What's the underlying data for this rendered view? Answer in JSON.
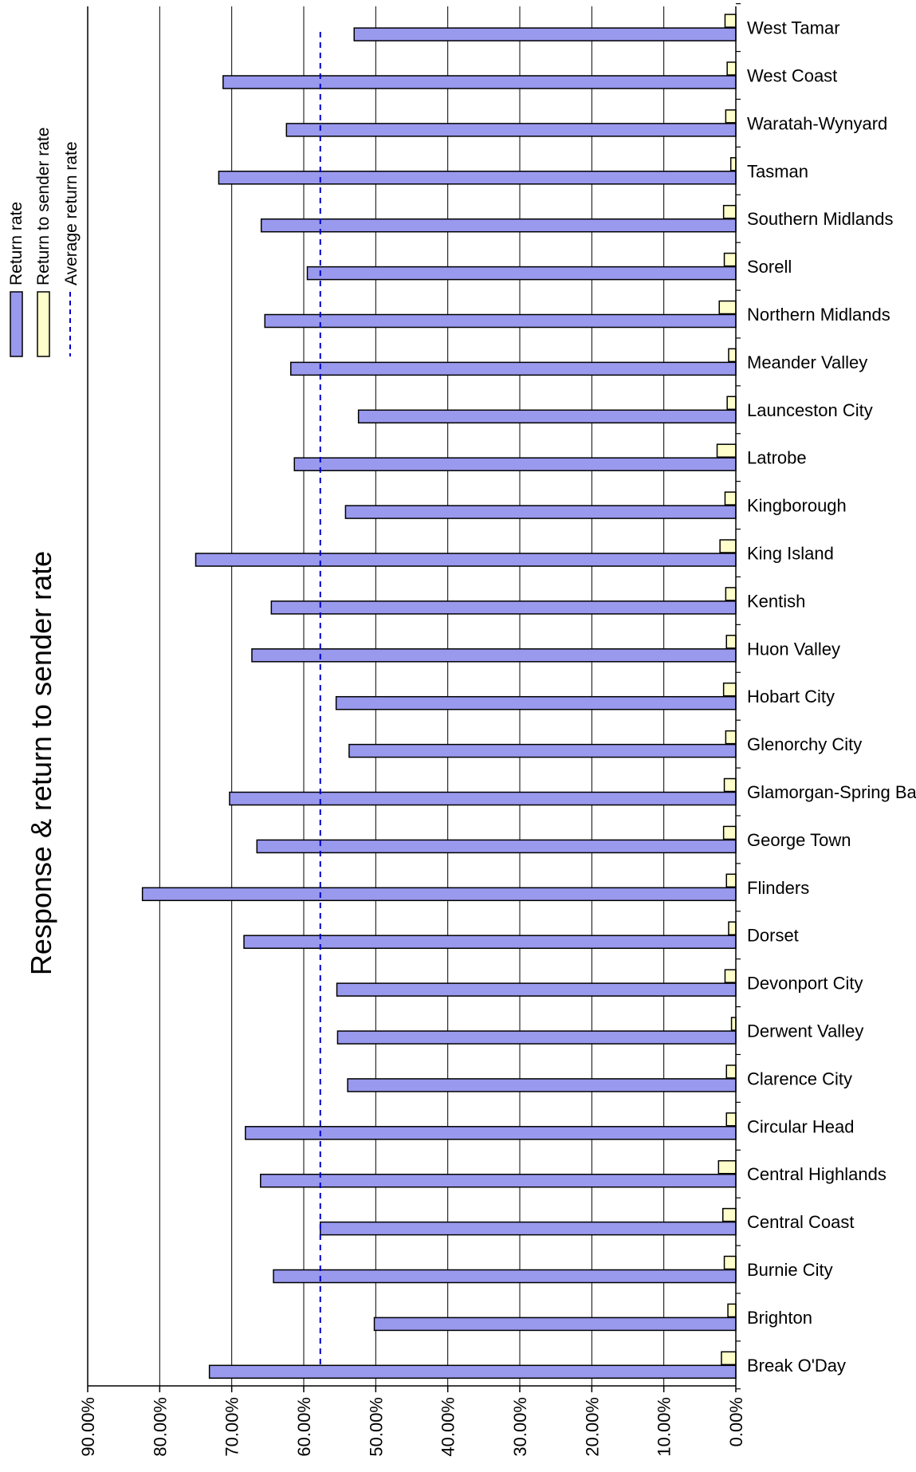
{
  "chart_data": {
    "type": "bar",
    "orientation": "horizontal",
    "title": "Response & return to sender rate",
    "categories": [
      "West Tamar",
      "West Coast",
      "Waratah-Wynyard",
      "Tasman",
      "Southern Midlands",
      "Sorell",
      "Northern Midlands",
      "Meander Valley",
      "Launceston City",
      "Latrobe",
      "Kingborough",
      "King Island",
      "Kentish",
      "Huon Valley",
      "Hobart City",
      "Glenorchy City",
      "Glamorgan-Spring Bay",
      "George Town",
      "Flinders",
      "Dorset",
      "Devonport City",
      "Derwent Valley",
      "Clarence City",
      "Circular Head",
      "Central Highlands",
      "Central Coast",
      "Burnie City",
      "Brighton",
      "Break O'Day"
    ],
    "series": [
      {
        "name": "Return rate",
        "color": "#9999ee",
        "values": [
          53.0,
          71.2,
          62.4,
          71.8,
          65.9,
          59.5,
          65.4,
          61.8,
          52.4,
          61.3,
          54.2,
          75.0,
          64.5,
          67.2,
          55.5,
          53.7,
          70.3,
          66.5,
          82.4,
          68.3,
          55.4,
          55.3,
          53.9,
          68.1,
          66.0,
          57.7,
          64.2,
          50.2,
          73.1
        ]
      },
      {
        "name": "Return to sender rate",
        "color": "#ffffcc",
        "values": [
          1.5,
          1.2,
          1.4,
          0.7,
          1.7,
          1.6,
          2.3,
          1.0,
          1.2,
          2.6,
          1.5,
          2.2,
          1.4,
          1.3,
          1.7,
          1.4,
          1.6,
          1.7,
          1.3,
          1.0,
          1.5,
          0.6,
          1.3,
          1.3,
          2.4,
          1.8,
          1.6,
          1.1,
          2.0
        ]
      }
    ],
    "average_line": {
      "name": "Average return rate",
      "value": 57.7,
      "color": "#0000cc",
      "style": "dashed"
    },
    "xlim": [
      0,
      90
    ],
    "x_reversed": true,
    "ticks": [
      "0.00%",
      "10.00%",
      "20.00%",
      "30.00%",
      "40.00%",
      "50.00%",
      "60.00%",
      "70.00%",
      "80.00%",
      "90.00%"
    ],
    "tick_values": [
      0,
      10,
      20,
      30,
      40,
      50,
      60,
      70,
      80,
      90
    ],
    "grid": true,
    "legend_position": "top-left"
  }
}
